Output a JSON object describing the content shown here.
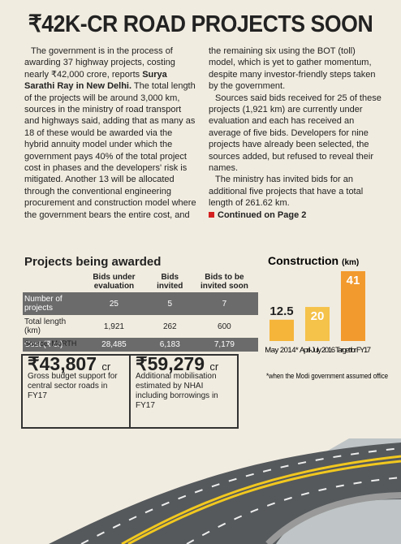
{
  "header": {
    "title": "₹42K-CR ROAD PROJECTS SOON"
  },
  "article": {
    "paragraphs": [
      [
        "The government is in the process of awarding 37 highway projects, costing nearly ₹42,000 crore, reports ",
        "Surya Sarathi Ray in New Delhi.",
        " The total length of the projects will be around 3,000 km, sources in the ministry of road transport and highways said, adding that as many as 18 of these would be awarded via the hybrid annuity model under which the government pays 40% of the total project cost in phases and the developers' risk is mitigated. Another 13 will be allocated through the conventional engineering procurement and construction model where the government bears the entire cost, and the remaining six using the BOT (toll) model, which is yet to gather momentum, despite many investor-friendly steps taken by the government."
      ],
      [
        "Sources said bids received for 25 of these projects (1,921 km) are currently under evaluation and each has received an average of five bids. Developers for nine projects have already been selected, the sources added, but refused to reveal their names."
      ],
      [
        "The ministry has invited bids for an additional five projects that have a total length of 261.62 km."
      ]
    ],
    "continued": "Continued on Page 2"
  },
  "table": {
    "title": "Projects being awarded",
    "columns": [
      "Bids under evaluation",
      "Bids invited",
      "Bids to be invited soon"
    ],
    "rows": [
      [
        "Number of projects",
        "25",
        "5",
        "7"
      ],
      [
        "Total length (km)",
        "1,921",
        "262",
        "600"
      ],
      [
        "Cost (₹ cr)",
        "28,485",
        "6,183",
        "7,179"
      ]
    ],
    "source": "Source: MoRTH"
  },
  "construction_chart": {
    "title": "Construction",
    "unit": "(km)",
    "categories": [
      "May 2014*",
      "April-July 2016",
      "Target for FY17"
    ],
    "values": [
      12.5,
      20,
      41
    ],
    "colors": [
      "#f5b53a",
      "#f5c24a",
      "#f29a2e"
    ],
    "note": "*when the Modi government assumed office"
  },
  "boxes": [
    {
      "amount": "₹43,807",
      "unit": "cr",
      "text": "Gross budget support for central sector roads in FY17"
    },
    {
      "amount": "₹59,279",
      "unit": "cr",
      "text": "Additional mobilisation estimated by NHAI including borrowings in FY17"
    }
  ]
}
